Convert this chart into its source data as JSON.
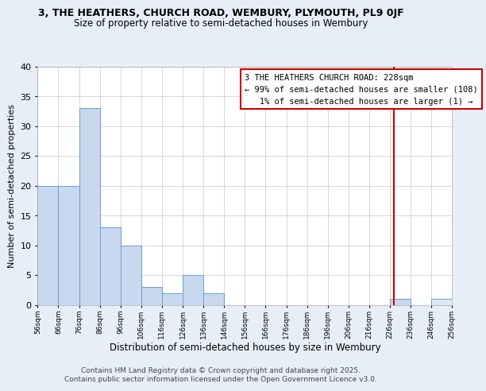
{
  "title": "3, THE HEATHERS, CHURCH ROAD, WEMBURY, PLYMOUTH, PL9 0JF",
  "subtitle": "Size of property relative to semi-detached houses in Wembury",
  "xlabel": "Distribution of semi-detached houses by size in Wembury",
  "ylabel": "Number of semi-detached properties",
  "bins_left": [
    56,
    66,
    76,
    86,
    96,
    106,
    116,
    126,
    136,
    146,
    156,
    166,
    176,
    186,
    196,
    206,
    216,
    226,
    236,
    246
  ],
  "counts": [
    20,
    20,
    33,
    13,
    10,
    3,
    2,
    5,
    2,
    0,
    0,
    0,
    0,
    0,
    0,
    0,
    0,
    1,
    0,
    1
  ],
  "bin_width": 10,
  "bar_color": "#c8d8ee",
  "bar_edge_color": "#6a9fd0",
  "highlight_value": 228,
  "highlight_color": "#cc0000",
  "highlight_fill": "#dde8f5",
  "annotation_box_text": "3 THE HEATHERS CHURCH ROAD: 228sqm\n← 99% of semi-detached houses are smaller (108)\n   1% of semi-detached houses are larger (1) →",
  "annotation_box_color": "#cc0000",
  "annotation_box_fill": "white",
  "ylim": [
    0,
    40
  ],
  "yticks": [
    0,
    5,
    10,
    15,
    20,
    25,
    30,
    35,
    40
  ],
  "footer1": "Contains HM Land Registry data © Crown copyright and database right 2025.",
  "footer2": "Contains public sector information licensed under the Open Government Licence v3.0.",
  "background_color": "#e8eef8",
  "plot_bg_color": "white",
  "grid_color": "#c8c8c8"
}
